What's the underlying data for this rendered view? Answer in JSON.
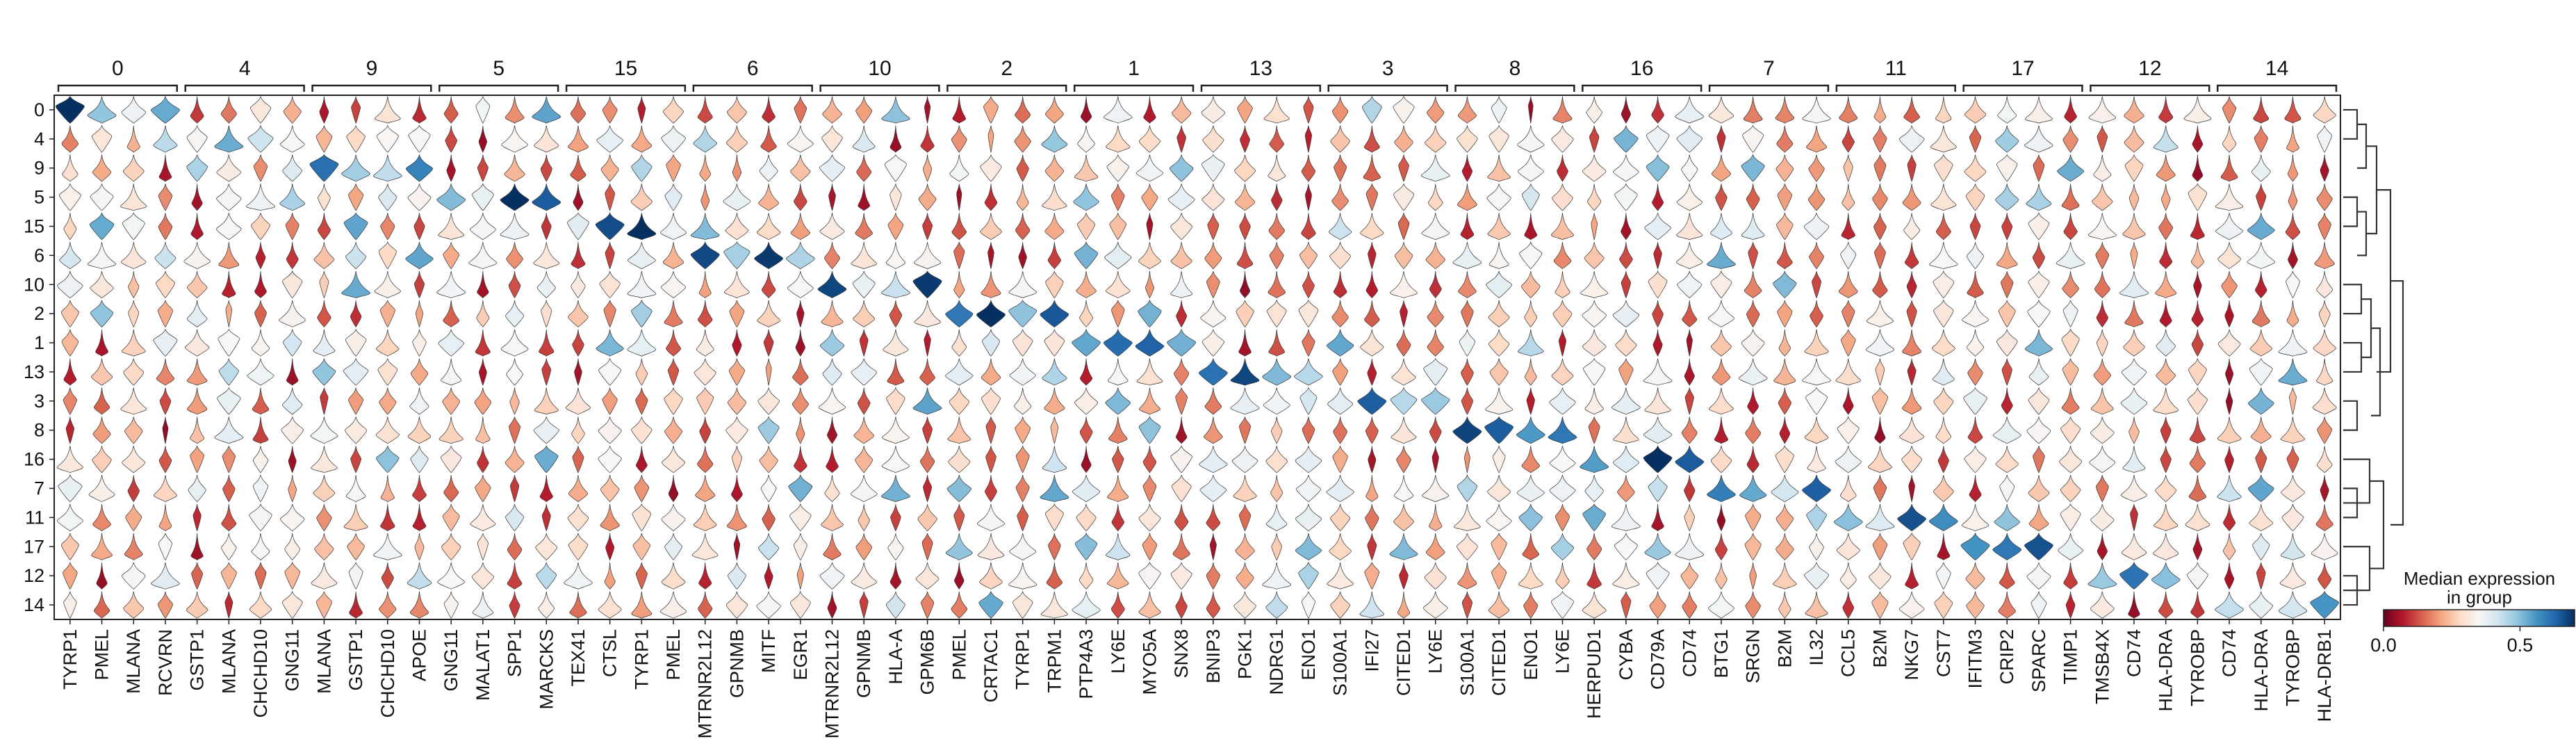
{
  "chart_data": {
    "type": "stacked violin",
    "clusters": [
      "0",
      "4",
      "9",
      "5",
      "15",
      "6",
      "10",
      "2",
      "1",
      "13",
      "3",
      "8",
      "16",
      "7",
      "11",
      "17",
      "12",
      "14"
    ],
    "gene_groups": [
      {
        "label": "0",
        "genes": [
          "TYRP1",
          "PMEL",
          "MLANA",
          "RCVRN"
        ]
      },
      {
        "label": "4",
        "genes": [
          "GSTP1",
          "MLANA",
          "CHCHD10",
          "GNG11"
        ]
      },
      {
        "label": "9",
        "genes": [
          "MLANA",
          "GSTP1",
          "CHCHD10",
          "APOE"
        ]
      },
      {
        "label": "5",
        "genes": [
          "GNG11",
          "MALAT1",
          "SPP1",
          "MARCKS"
        ]
      },
      {
        "label": "15",
        "genes": [
          "TEX41",
          "CTSL",
          "TYRP1",
          "PMEL"
        ]
      },
      {
        "label": "6",
        "genes": [
          "MTRNR2L12",
          "GPNMB",
          "MITF",
          "EGR1"
        ]
      },
      {
        "label": "10",
        "genes": [
          "MTRNR2L12",
          "GPNMB",
          "HLA-A",
          "GPM6B"
        ]
      },
      {
        "label": "2",
        "genes": [
          "PMEL",
          "CRTAC1",
          "TYRP1",
          "TRPM1"
        ]
      },
      {
        "label": "1",
        "genes": [
          "PTP4A3",
          "LY6E",
          "MYO5A",
          "SNX8"
        ]
      },
      {
        "label": "13",
        "genes": [
          "BNIP3",
          "PGK1",
          "NDRG1",
          "ENO1"
        ]
      },
      {
        "label": "3",
        "genes": [
          "S100A1",
          "IFI27",
          "CITED1",
          "LY6E"
        ]
      },
      {
        "label": "8",
        "genes": [
          "S100A1",
          "CITED1",
          "ENO1",
          "LY6E"
        ]
      },
      {
        "label": "16",
        "genes": [
          "HERPUD1",
          "CYBA",
          "CD79A",
          "CD74"
        ]
      },
      {
        "label": "7",
        "genes": [
          "BTG1",
          "SRGN",
          "B2M",
          "IL32"
        ]
      },
      {
        "label": "11",
        "genes": [
          "CCL5",
          "B2M",
          "NKG7",
          "CST7"
        ]
      },
      {
        "label": "17",
        "genes": [
          "IFITM3",
          "CRIP2",
          "SPARC",
          "TIMP1"
        ]
      },
      {
        "label": "12",
        "genes": [
          "TMSB4X",
          "CD74",
          "HLA-DRA",
          "TYROBP"
        ]
      },
      {
        "label": "14",
        "genes": [
          "CD74",
          "HLA-DRA",
          "TYROBP",
          "HLA-DRB1"
        ]
      }
    ],
    "colorbar": {
      "title_lines": [
        "Median expression",
        "in group"
      ],
      "min": 0.0,
      "max": 0.7,
      "tick_values": [
        0.0,
        0.5
      ],
      "tick_labels": [
        "0.0",
        "0.5"
      ],
      "colormap": [
        "#67001f",
        "#b2182b",
        "#d6604d",
        "#f4a582",
        "#fddbc7",
        "#f7f7f7",
        "#d1e5f0",
        "#92c5de",
        "#4393c3",
        "#2166ac",
        "#053061"
      ]
    },
    "dendrogram": "right",
    "grid": false,
    "legend_position": "bottom-right"
  }
}
